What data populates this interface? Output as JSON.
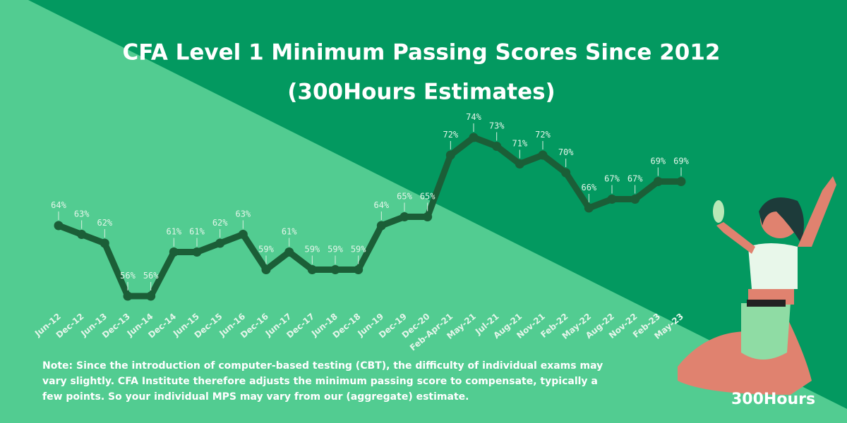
{
  "chart_data": {
    "type": "line",
    "title": [
      "CFA Level 1 Minimum Passing Scores Since 2012",
      "(300Hours Estimates)"
    ],
    "categories": [
      "Jun-12",
      "Dec-12",
      "Jun-13",
      "Dec-13",
      "Jun-14",
      "Dec-14",
      "Jun-15",
      "Dec-15",
      "Jun-16",
      "Dec-16",
      "Jun-17",
      "Dec-17",
      "Jun-18",
      "Dec-18",
      "Jun-19",
      "Dec-19",
      "Dec-20",
      "Feb-Apr-21",
      "May-21",
      "Jul-21",
      "Aug-21",
      "Nov-21",
      "Feb-22",
      "May-22",
      "Aug-22",
      "Nov-22",
      "Feb-23",
      "May-23"
    ],
    "values": [
      64,
      63,
      62,
      56,
      56,
      61,
      61,
      62,
      63,
      59,
      61,
      59,
      59,
      59,
      64,
      65,
      65,
      72,
      74,
      73,
      71,
      72,
      70,
      66,
      67,
      67,
      69,
      69
    ],
    "value_labels": [
      "64%",
      "63%",
      "62%",
      "56%",
      "56%",
      "61%",
      "61%",
      "62%",
      "63%",
      "59%",
      "61%",
      "59%",
      "59%",
      "59%",
      "64%",
      "65%",
      "65%",
      "72%",
      "74%",
      "73%",
      "71%",
      "72%",
      "70%",
      "66%",
      "67%",
      "67%",
      "69%",
      "69%"
    ],
    "color": "#1b5e37",
    "note": "Note: Since the introduction of computer-based testing (CBT), the difficulty of individual exams may vary slightly. CFA Institute  therefore adjusts the minimum passing score to compensate, typically a few points. So your individual MPS may vary from our (aggregate) estimate."
  },
  "brand": "300Hours"
}
